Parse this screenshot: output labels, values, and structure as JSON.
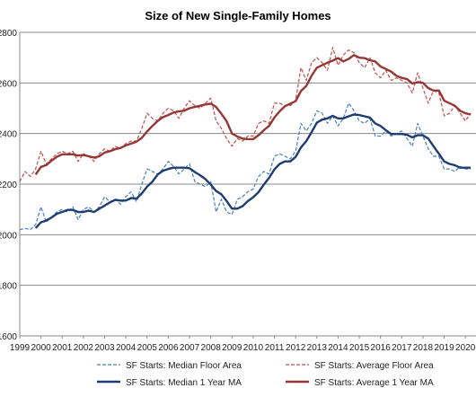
{
  "chart_data": {
    "type": "line",
    "title": "Size of New Single-Family Homes",
    "xlabel": "",
    "ylabel": "",
    "ylim": [
      1600,
      2800
    ],
    "yticks": [
      1600,
      1800,
      2000,
      2200,
      2400,
      2600,
      2800
    ],
    "xlim": [
      1999,
      2020.5
    ],
    "x_tick_labels": [
      "1999",
      "2000",
      "2001",
      "2002",
      "2003",
      "2004",
      "2005",
      "2006",
      "2007",
      "2008",
      "2009",
      "2010",
      "2011",
      "2012",
      "2013",
      "2014",
      "2015",
      "2016",
      "2017",
      "2018",
      "2019",
      "2020"
    ],
    "grid": "horizontal",
    "legend_position": "bottom",
    "x": [
      1999,
      1999.25,
      1999.5,
      1999.75,
      2000,
      2000.25,
      2000.5,
      2000.75,
      2001,
      2001.25,
      2001.5,
      2001.75,
      2002,
      2002.25,
      2002.5,
      2002.75,
      2003,
      2003.25,
      2003.5,
      2003.75,
      2004,
      2004.25,
      2004.5,
      2004.75,
      2005,
      2005.25,
      2005.5,
      2005.75,
      2006,
      2006.25,
      2006.5,
      2006.75,
      2007,
      2007.25,
      2007.5,
      2007.75,
      2008,
      2008.25,
      2008.5,
      2008.75,
      2009,
      2009.25,
      2009.5,
      2009.75,
      2010,
      2010.25,
      2010.5,
      2010.75,
      2011,
      2011.25,
      2011.5,
      2011.75,
      2012,
      2012.25,
      2012.5,
      2012.75,
      2013,
      2013.25,
      2013.5,
      2013.75,
      2014,
      2014.25,
      2014.5,
      2014.75,
      2015,
      2015.25,
      2015.5,
      2015.75,
      2016,
      2016.25,
      2016.5,
      2016.75,
      2017,
      2017.25,
      2017.5,
      2017.75,
      2018,
      2018.25,
      2018.5,
      2018.75,
      2019,
      2019.25,
      2019.5,
      2019.75,
      2020,
      2020.25
    ],
    "series": [
      {
        "name": "SF Starts: Median Floor Area",
        "color": "#4a7ebb",
        "style": "dashed",
        "width": 1.2,
        "values": [
          2020,
          2025,
          2020,
          2040,
          2110,
          2050,
          2070,
          2090,
          2100,
          2090,
          2110,
          2060,
          2100,
          2110,
          2090,
          2110,
          2150,
          2130,
          2140,
          2120,
          2150,
          2170,
          2130,
          2200,
          2260,
          2250,
          2240,
          2260,
          2290,
          2270,
          2240,
          2260,
          2280,
          2210,
          2200,
          2190,
          2210,
          2090,
          2140,
          2090,
          2080,
          2140,
          2150,
          2170,
          2180,
          2230,
          2250,
          2240,
          2310,
          2320,
          2310,
          2300,
          2330,
          2440,
          2410,
          2440,
          2490,
          2480,
          2440,
          2470,
          2430,
          2460,
          2520,
          2490,
          2450,
          2440,
          2460,
          2390,
          2390,
          2410,
          2390,
          2400,
          2410,
          2380,
          2350,
          2440,
          2390,
          2340,
          2310,
          2310,
          2260,
          2260,
          2250,
          2270,
          2260,
          2260
        ]
      },
      {
        "name": "SF Starts: Average Floor Area",
        "color": "#c0504d",
        "style": "dashed",
        "width": 1.2,
        "values": [
          2210,
          2250,
          2230,
          2260,
          2330,
          2280,
          2300,
          2320,
          2330,
          2320,
          2330,
          2290,
          2320,
          2310,
          2290,
          2320,
          2340,
          2330,
          2350,
          2340,
          2360,
          2370,
          2370,
          2420,
          2480,
          2460,
          2450,
          2480,
          2500,
          2490,
          2460,
          2500,
          2530,
          2510,
          2500,
          2520,
          2540,
          2450,
          2420,
          2380,
          2350,
          2380,
          2370,
          2390,
          2390,
          2440,
          2450,
          2440,
          2520,
          2520,
          2510,
          2510,
          2530,
          2660,
          2610,
          2680,
          2700,
          2680,
          2650,
          2740,
          2670,
          2710,
          2730,
          2720,
          2680,
          2660,
          2700,
          2640,
          2620,
          2650,
          2610,
          2620,
          2610,
          2600,
          2560,
          2640,
          2580,
          2520,
          2570,
          2560,
          2470,
          2480,
          2510,
          2480,
          2450,
          2480
        ]
      },
      {
        "name": "SF Starts: Median 1 Year MA",
        "color": "#1f3c73",
        "style": "solid",
        "width": 2.4,
        "values": [
          null,
          null,
          null,
          2026,
          2049,
          2056,
          2068,
          2083,
          2090,
          2098,
          2098,
          2090,
          2090,
          2095,
          2090,
          2103,
          2115,
          2128,
          2138,
          2135,
          2135,
          2145,
          2143,
          2163,
          2190,
          2210,
          2238,
          2253,
          2260,
          2265,
          2265,
          2265,
          2263,
          2248,
          2235,
          2220,
          2198,
          2173,
          2160,
          2133,
          2103,
          2103,
          2113,
          2133,
          2148,
          2168,
          2198,
          2225,
          2258,
          2280,
          2290,
          2290,
          2308,
          2345,
          2370,
          2405,
          2443,
          2455,
          2460,
          2470,
          2460,
          2460,
          2468,
          2475,
          2473,
          2468,
          2463,
          2440,
          2430,
          2413,
          2398,
          2398,
          2398,
          2395,
          2385,
          2393,
          2393,
          2380,
          2350,
          2320,
          2290,
          2280,
          2275,
          2265,
          2265,
          2265
        ]
      },
      {
        "name": "SF Starts: Average 1 Year MA",
        "color": "#953735",
        "style": "solid",
        "width": 2.4,
        "values": [
          null,
          null,
          null,
          2238,
          2268,
          2275,
          2293,
          2308,
          2318,
          2318,
          2318,
          2313,
          2315,
          2310,
          2305,
          2310,
          2325,
          2330,
          2338,
          2343,
          2353,
          2360,
          2368,
          2383,
          2408,
          2430,
          2450,
          2465,
          2473,
          2483,
          2488,
          2490,
          2500,
          2505,
          2510,
          2515,
          2518,
          2505,
          2478,
          2448,
          2400,
          2388,
          2380,
          2378,
          2378,
          2393,
          2413,
          2430,
          2463,
          2488,
          2508,
          2518,
          2528,
          2568,
          2588,
          2628,
          2660,
          2670,
          2680,
          2688,
          2698,
          2685,
          2695,
          2710,
          2700,
          2698,
          2690,
          2685,
          2665,
          2655,
          2645,
          2628,
          2620,
          2615,
          2598,
          2603,
          2600,
          2580,
          2570,
          2570,
          2530,
          2520,
          2510,
          2490,
          2480,
          2475
        ]
      }
    ]
  }
}
